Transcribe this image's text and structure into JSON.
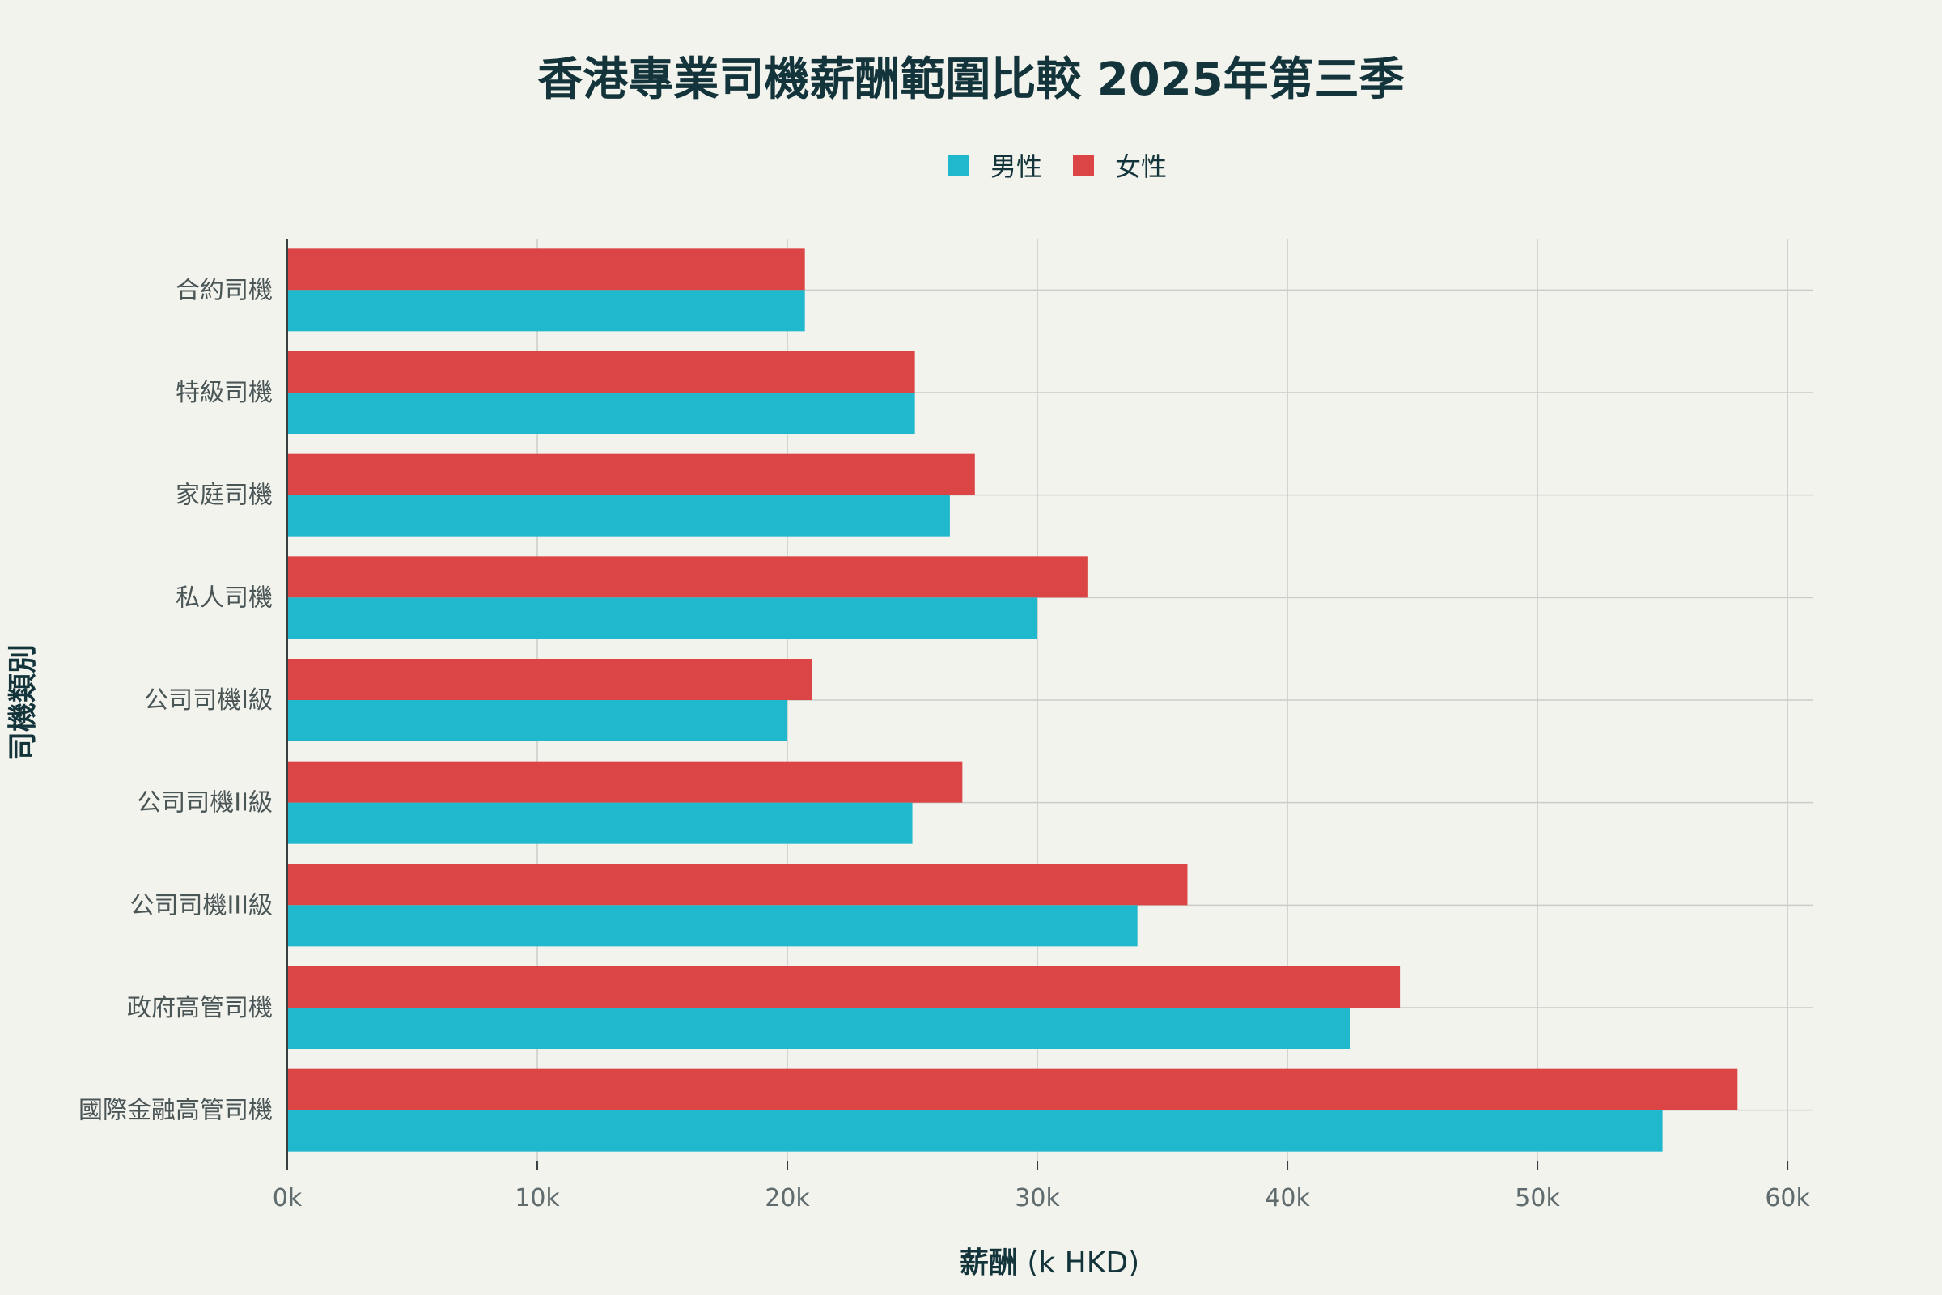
{
  "chart_data": {
    "type": "bar",
    "orientation": "horizontal",
    "title": "香港專業司機薪酬範圍比較 2025年第三季",
    "xlabel_main": "薪酬",
    "xlabel_unit": " (k HKD)",
    "ylabel": "司機類別",
    "xlim": [
      0,
      61
    ],
    "x_ticks": [
      0,
      10,
      20,
      30,
      40,
      50,
      60
    ],
    "x_tick_labels": [
      "0k",
      "10k",
      "20k",
      "30k",
      "40k",
      "50k",
      "60k"
    ],
    "legend_position": "top-center",
    "grid": true,
    "categories": [
      "合約司機",
      "特級司機",
      "家庭司機",
      "私人司機",
      "公司司機I級",
      "公司司機II級",
      "公司司機III級",
      "政府高管司機",
      "國際金融高管司機"
    ],
    "series": [
      {
        "name": "女性",
        "color": "#db4545",
        "values": [
          20.7,
          25.1,
          27.5,
          32.0,
          21.0,
          27.0,
          36.0,
          44.5,
          58.0
        ]
      },
      {
        "name": "男性",
        "color": "#1fb8cd",
        "values": [
          20.7,
          25.1,
          26.5,
          30.0,
          20.0,
          25.0,
          34.0,
          42.5,
          55.0
        ]
      }
    ],
    "legend": [
      {
        "name": "男性",
        "color": "#1fb8cd"
      },
      {
        "name": "女性",
        "color": "#db4545"
      }
    ]
  }
}
